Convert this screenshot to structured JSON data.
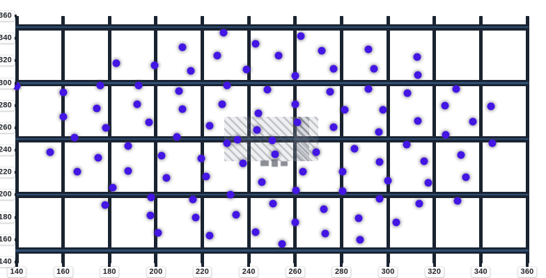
{
  "chart_data": {
    "type": "scatter",
    "title": "",
    "xlabel": "",
    "ylabel": "",
    "xlim": [
      140,
      360
    ],
    "ylim": [
      140,
      360
    ],
    "x_ticks": [
      140,
      160,
      180,
      200,
      220,
      240,
      260,
      280,
      300,
      320,
      340,
      360
    ],
    "y_ticks": [
      140,
      160,
      180,
      200,
      220,
      240,
      260,
      280,
      300,
      320,
      340,
      360
    ],
    "grid": {
      "vertical_lines_at": [
        140,
        160,
        180,
        200,
        220,
        240,
        260,
        280,
        300,
        320,
        340,
        360
      ],
      "horizontal_bands_at": [
        150,
        200,
        250,
        300,
        350
      ],
      "legend": "none"
    },
    "points": [
      [
        183,
        318
      ],
      [
        176,
        298
      ],
      [
        192.5,
        298
      ],
      [
        160,
        291.5
      ],
      [
        174.5,
        277.5
      ],
      [
        192,
        281
      ],
      [
        160,
        270
      ],
      [
        178.5,
        260
      ],
      [
        165,
        251
      ],
      [
        140,
        297
      ],
      [
        229,
        345
      ],
      [
        211.5,
        332
      ],
      [
        243,
        335
      ],
      [
        226.5,
        324.5
      ],
      [
        253,
        324.5
      ],
      [
        199.5,
        316
      ],
      [
        215,
        311
      ],
      [
        239,
        312
      ],
      [
        230.5,
        298
      ],
      [
        248,
        294
      ],
      [
        210,
        293
      ],
      [
        228.5,
        281
      ],
      [
        211.5,
        276.5
      ],
      [
        244,
        273
      ],
      [
        197,
        265
      ],
      [
        223,
        261.5
      ],
      [
        243.5,
        258
      ],
      [
        209,
        252
      ],
      [
        235,
        249.5
      ],
      [
        262.5,
        342
      ],
      [
        271.5,
        329
      ],
      [
        291.5,
        330
      ],
      [
        276.5,
        312.5
      ],
      [
        294,
        312.5
      ],
      [
        260,
        306.5
      ],
      [
        275,
        292
      ],
      [
        291.5,
        295
      ],
      [
        308.5,
        291
      ],
      [
        260,
        281
      ],
      [
        281.5,
        276
      ],
      [
        298,
        276
      ],
      [
        261,
        265
      ],
      [
        276.5,
        260.5
      ],
      [
        296,
        256
      ],
      [
        312.5,
        323.5
      ],
      [
        313,
        307
      ],
      [
        329.5,
        295
      ],
      [
        324.5,
        280
      ],
      [
        344.5,
        279.5
      ],
      [
        313,
        266
      ],
      [
        336.5,
        265.5
      ],
      [
        325,
        254
      ],
      [
        154.5,
        238
      ],
      [
        175,
        233.5
      ],
      [
        188,
        244
      ],
      [
        166,
        220.5
      ],
      [
        188,
        221.5
      ],
      [
        181.5,
        206.5
      ],
      [
        178,
        191
      ],
      [
        198,
        198
      ],
      [
        197.5,
        181.5
      ],
      [
        230.5,
        246
      ],
      [
        202.5,
        235
      ],
      [
        219.5,
        232.5
      ],
      [
        250,
        249
      ],
      [
        237.5,
        228
      ],
      [
        251.5,
        236.5
      ],
      [
        204.5,
        215
      ],
      [
        221.5,
        216.5
      ],
      [
        245.5,
        211.5
      ],
      [
        216,
        196
      ],
      [
        232,
        200.5
      ],
      [
        217,
        180
      ],
      [
        234.5,
        182.5
      ],
      [
        201,
        166
      ],
      [
        223,
        163.5
      ],
      [
        243,
        167
      ],
      [
        250.5,
        192.5
      ],
      [
        269,
        238.5
      ],
      [
        285.5,
        241.5
      ],
      [
        308,
        245
      ],
      [
        296.5,
        229.5
      ],
      [
        263.5,
        221
      ],
      [
        280.5,
        220.5
      ],
      [
        300,
        212.5
      ],
      [
        260.5,
        204
      ],
      [
        280.5,
        203.5
      ],
      [
        296.5,
        196.5
      ],
      [
        272.5,
        187
      ],
      [
        287.5,
        179
      ],
      [
        303.5,
        175.5
      ],
      [
        260,
        175.5
      ],
      [
        273,
        165.5
      ],
      [
        288,
        160
      ],
      [
        254.5,
        156
      ],
      [
        345,
        246
      ],
      [
        331.5,
        236
      ],
      [
        315.5,
        230
      ],
      [
        333.5,
        216
      ],
      [
        317.5,
        211
      ],
      [
        330,
        195
      ],
      [
        313.5,
        192.5
      ]
    ]
  },
  "colors": {
    "background": "#ffffff",
    "grid_vertical": "#1a2330",
    "grid_band": "#1b2433",
    "grid_band_core": "#2d4f73",
    "tick_stub": "#1a2330",
    "dot_fill": "#4316e4",
    "label_text": "#23262b",
    "label_pill": "#fbfbfb"
  },
  "watermark": {
    "present": true,
    "style": "diagonal-hatch-block",
    "text": ""
  }
}
